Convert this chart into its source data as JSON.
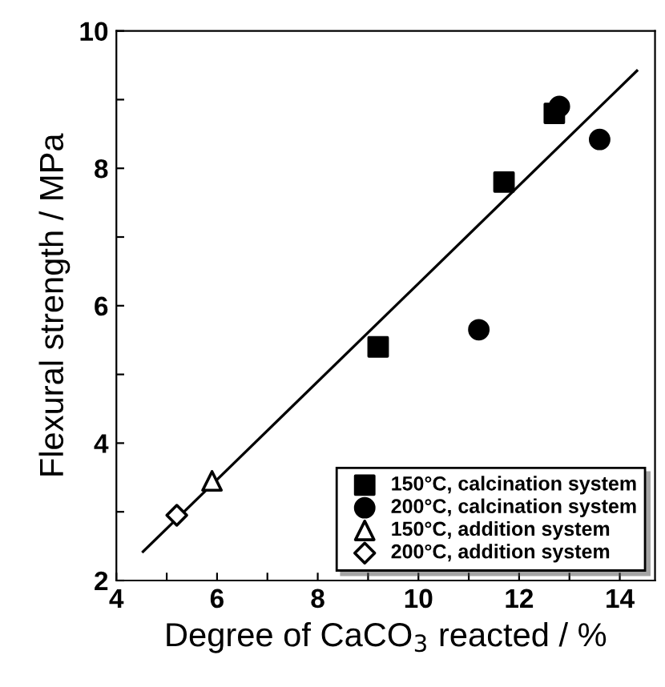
{
  "chart_data": {
    "type": "scatter",
    "xlabel": "Degree of CaCO$_{3}$ reacted / %",
    "ylabel": "Flexural strength / MPa",
    "xlim": [
      4,
      14.7
    ],
    "ylim": [
      2,
      10
    ],
    "xticks": [
      4,
      {
        "value": 5,
        "label": null
      },
      6,
      {
        "value": 7,
        "label": null
      },
      8,
      {
        "value": 9,
        "label": null
      },
      10,
      {
        "value": 11,
        "label": null
      },
      12,
      {
        "value": 13,
        "label": null
      },
      14
    ],
    "yticks": [
      2,
      {
        "value": 3,
        "label": null
      },
      4,
      {
        "value": 5,
        "label": null
      },
      6,
      {
        "value": 7,
        "label": null
      },
      8,
      {
        "value": 9,
        "label": null
      },
      10
    ],
    "legend": "bottom right",
    "grid": false,
    "series": [
      {
        "name": "150°C, calcination system",
        "color": "#000000",
        "marker": "square",
        "x": [
          9.2,
          11.7,
          12.7
        ],
        "values": [
          5.4,
          7.8,
          8.8
        ]
      },
      {
        "name": "200°C, calcination system",
        "color": "#000000",
        "marker": "circle",
        "x": [
          11.2,
          12.8,
          13.6
        ],
        "values": [
          5.65,
          8.9,
          8.42
        ]
      },
      {
        "name": "150°C, addition system",
        "color": "#000000",
        "marker": "triangle",
        "x": [
          5.9
        ],
        "values": [
          3.45
        ]
      },
      {
        "name": "200°C, addition system",
        "color": "#000000",
        "marker": "diamond",
        "x": [
          5.2
        ],
        "values": [
          2.95
        ]
      },
      {
        "type": "line",
        "color": "#000000",
        "marker": "none",
        "line_style": "solid",
        "x": [
          4.53,
          14.34
        ],
        "values": [
          2.42,
          9.42
        ]
      }
    ]
  }
}
